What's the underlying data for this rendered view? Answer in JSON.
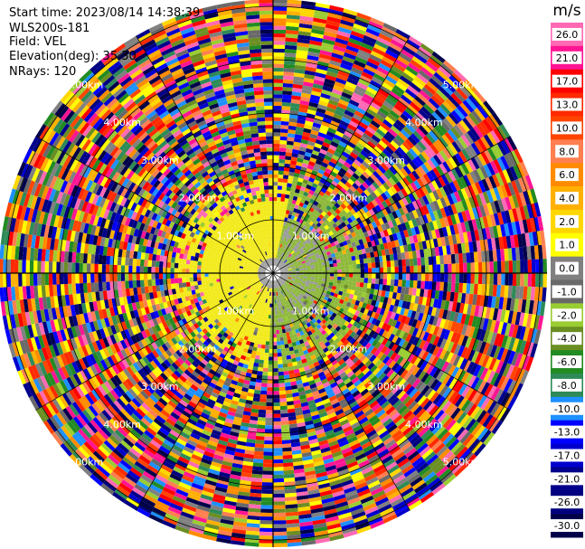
{
  "info": {
    "start_time": "Start time: 2023/08/14 14:38:39",
    "instrument": "WLS200s-181",
    "field": "Field: VEL",
    "elevation": "Elevation(deg): 35.30",
    "nrays": "NRays: 120"
  },
  "chart_data": {
    "type": "heatmap",
    "projection": "polar",
    "nrays": 120,
    "range_rings_km": [
      1.0,
      2.0,
      3.0,
      4.0,
      5.0
    ],
    "ring_label_text": [
      "1.00km",
      "2.00km",
      "3.00km",
      "4.00km",
      "5.00km"
    ],
    "max_range_km": 5.2,
    "colorbar": {
      "unit": "m/s",
      "tick_labels": [
        "26.0",
        "21.0",
        "17.0",
        "13.0",
        "10.0",
        "8.0",
        "6.0",
        "4.0",
        "2.0",
        "1.0",
        "0.0",
        "-1.0",
        "-2.0",
        "-4.0",
        "-6.0",
        "-8.0",
        "-10.0",
        "-13.0",
        "-17.0",
        "-21.0",
        "-26.0",
        "-30.0"
      ],
      "colors": [
        "#ff69b4",
        "#ff1493",
        "#ff0000",
        "#ff2a00",
        "#ff4500",
        "#ff7f50",
        "#ff8c00",
        "#ffb000",
        "#ffd700",
        "#ffff00",
        "#808080",
        "#696969",
        "#9acd32",
        "#6b8e23",
        "#228b22",
        "#2e8b57",
        "#1e90ff",
        "#0000ff",
        "#0000cd",
        "#00008b",
        "#000080",
        "#00004a"
      ]
    },
    "near_field": {
      "yellow_sector_color": "#f2ea1a",
      "green_sector_color": "#8db83a",
      "gray_core_color": "#9a9a9a"
    }
  }
}
